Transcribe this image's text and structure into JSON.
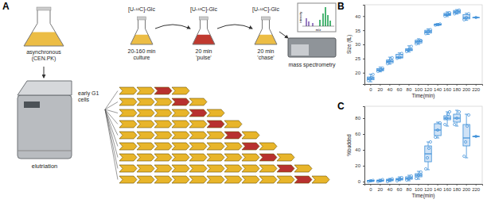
{
  "panels": [
    "A",
    "B",
    "C"
  ],
  "diagram": {
    "flask_label": [
      "asynchronous",
      "(CEN.PK)"
    ],
    "elutriation": "elutriation",
    "cells": [
      "early G1",
      "cells"
    ],
    "steps": [
      {
        "tracer": "[U-¹²C]-Glc",
        "label": [
          "20-160 min",
          "culture"
        ]
      },
      {
        "tracer": "[U-¹³C]-Glc",
        "label": [
          "20 min",
          "'pulse'"
        ]
      },
      {
        "tracer": "[U-¹²C]-Glc",
        "label": [
          "20 min",
          "'chase'"
        ]
      }
    ],
    "mass_spectrometry": "mass spectrometry",
    "spectrum_y": "intensity",
    "spectrum_x": "m/z"
  },
  "chart_data": [
    {
      "type": "box",
      "x_label": "Time(min)",
      "y_label": "Size (fL)",
      "categories": [
        "0",
        "20",
        "40",
        "60",
        "80",
        "100",
        "120",
        "140",
        "160",
        "180",
        "200",
        "220"
      ],
      "min": [
        16.8,
        20.3,
        23,
        25,
        27.3,
        30,
        33.5,
        36.6,
        39.8,
        40.7,
        38.5,
        39.5
      ],
      "q1": [
        17.5,
        20.7,
        23.5,
        25.2,
        27.8,
        30.5,
        34,
        36.8,
        40.2,
        41,
        39,
        39.5
      ],
      "median": [
        18,
        21,
        24,
        25.5,
        28,
        31,
        34.5,
        37,
        40.5,
        41.5,
        39.5,
        39.5
      ],
      "q3": [
        18.5,
        21.5,
        24.5,
        26.5,
        28.5,
        31.5,
        35,
        37.2,
        41,
        42,
        40.5,
        39.5
      ],
      "max": [
        19.5,
        22,
        25.5,
        27,
        29.5,
        32,
        35.5,
        37.4,
        41.5,
        42.3,
        41,
        39.5
      ],
      "points": [
        [
          17.2,
          17.8,
          18.3,
          19.4
        ],
        [
          20.5,
          21,
          21.6
        ],
        [
          23.2,
          24,
          24.8,
          25.3
        ],
        [
          25.1,
          25.6,
          26.8
        ],
        [
          27.5,
          28,
          28.4,
          29.3
        ],
        [
          30.2,
          31,
          31.4
        ],
        [
          33.8,
          34.5,
          35.2
        ],
        [
          36.8,
          37.2
        ],
        [
          40,
          40.6,
          41.2
        ],
        [
          40.8,
          41.5,
          42.1
        ],
        [
          38.7,
          39.5,
          40.8
        ],
        [
          39.5
        ]
      ],
      "color": "#3b8ed8",
      "ylim": [
        16,
        44
      ],
      "yticks": [
        20,
        25,
        30,
        35,
        40
      ],
      "grid": false
    },
    {
      "type": "box",
      "x_label": "Time(min)",
      "y_label": "%budded",
      "categories": [
        "0",
        "20",
        "40",
        "60",
        "80",
        "100",
        "120",
        "140",
        "160",
        "180",
        "200",
        "220"
      ],
      "min": [
        0,
        0,
        0,
        1,
        1,
        3,
        15,
        55,
        70,
        70,
        30,
        57
      ],
      "q1": [
        0.5,
        0.5,
        1,
        2,
        3,
        6,
        25,
        58,
        78,
        75,
        45,
        57
      ],
      "median": [
        1,
        1,
        2,
        3,
        4,
        8,
        35,
        65,
        80,
        80,
        55,
        57
      ],
      "q3": [
        1.5,
        2,
        3,
        4,
        6,
        10,
        45,
        73,
        83,
        85,
        72,
        57
      ],
      "max": [
        2,
        3,
        4,
        6,
        8,
        13,
        50,
        75,
        88,
        90,
        85,
        57
      ],
      "points": [
        [
          0,
          1,
          1.5
        ],
        [
          0,
          1,
          2.5
        ],
        [
          0,
          2,
          3.5
        ],
        [
          1,
          3,
          5
        ],
        [
          2,
          4,
          7
        ],
        [
          4,
          8,
          12
        ],
        [
          16,
          30,
          42,
          50
        ],
        [
          56,
          65,
          74
        ],
        [
          72,
          80,
          85,
          88
        ],
        [
          72,
          80,
          88
        ],
        [
          32,
          50,
          70,
          84
        ],
        [
          57
        ]
      ],
      "color": "#3b8ed8",
      "ylim": [
        -3,
        95
      ],
      "yticks": [
        0,
        20,
        40,
        60,
        80
      ],
      "grid": false
    }
  ]
}
